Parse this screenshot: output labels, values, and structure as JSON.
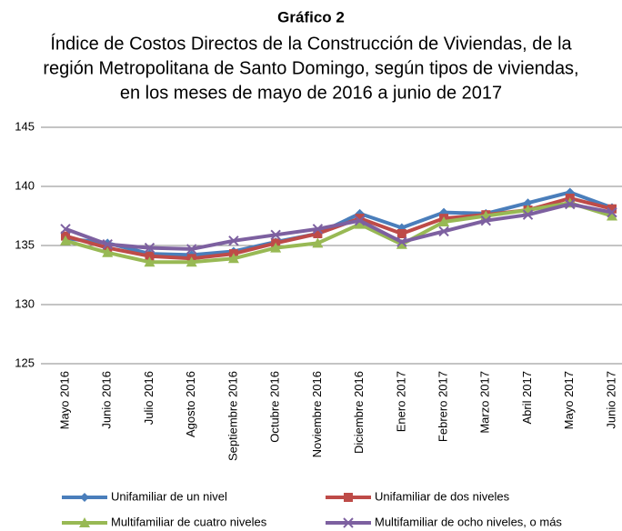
{
  "chart_data": {
    "type": "line",
    "title": "Gráfico 2",
    "subtitle": [
      "Índice de Costos Directos de la Construcción de Viviendas, de la",
      "región Metropolitana de Santo Domingo, según tipos de viviendas,",
      "en los meses de mayo de 2016 a junio de 2017"
    ],
    "categories": [
      "Mayo 2016",
      "Junio 2016",
      "Julio 2016",
      "Agosto 2016",
      "Septiembre 2016",
      "Octubre 2016",
      "Noviembre 2016",
      "Diciembre 2016",
      "Enero 2017",
      "Febrero 2017",
      "Marzo 2017",
      "Abril 2017",
      "Mayo 2017",
      "Junio 2017"
    ],
    "series": [
      {
        "name": "Unifamiliar de un nivel",
        "color": "#4a7ebb",
        "marker": "diamond",
        "values": [
          135.6,
          135.2,
          134.3,
          134.2,
          134.5,
          135.3,
          136.0,
          137.7,
          136.5,
          137.8,
          137.7,
          138.6,
          139.5,
          138.2
        ]
      },
      {
        "name": "Unifamiliar de dos niveles",
        "color": "#be4b48",
        "marker": "square",
        "values": [
          135.8,
          134.8,
          134.1,
          133.9,
          134.3,
          135.2,
          136.0,
          137.3,
          136.0,
          137.3,
          137.6,
          138.0,
          139.0,
          138.1
        ]
      },
      {
        "name": "Multifamiliar de cuatro niveles",
        "color": "#98b954",
        "marker": "triangle",
        "values": [
          135.4,
          134.4,
          133.6,
          133.6,
          133.9,
          134.8,
          135.2,
          136.8,
          135.1,
          137.0,
          137.5,
          138.0,
          138.6,
          137.5
        ]
      },
      {
        "name": "Multifamiliar de ocho niveles, o más",
        "color": "#7d60a0",
        "marker": "x",
        "values": [
          136.4,
          135.1,
          134.8,
          134.7,
          135.4,
          135.9,
          136.4,
          137.1,
          135.3,
          136.2,
          137.1,
          137.6,
          138.5,
          137.8
        ]
      }
    ],
    "ylim": [
      125,
      145
    ],
    "yticks": [
      125,
      130,
      135,
      140,
      145
    ],
    "grid": true
  }
}
